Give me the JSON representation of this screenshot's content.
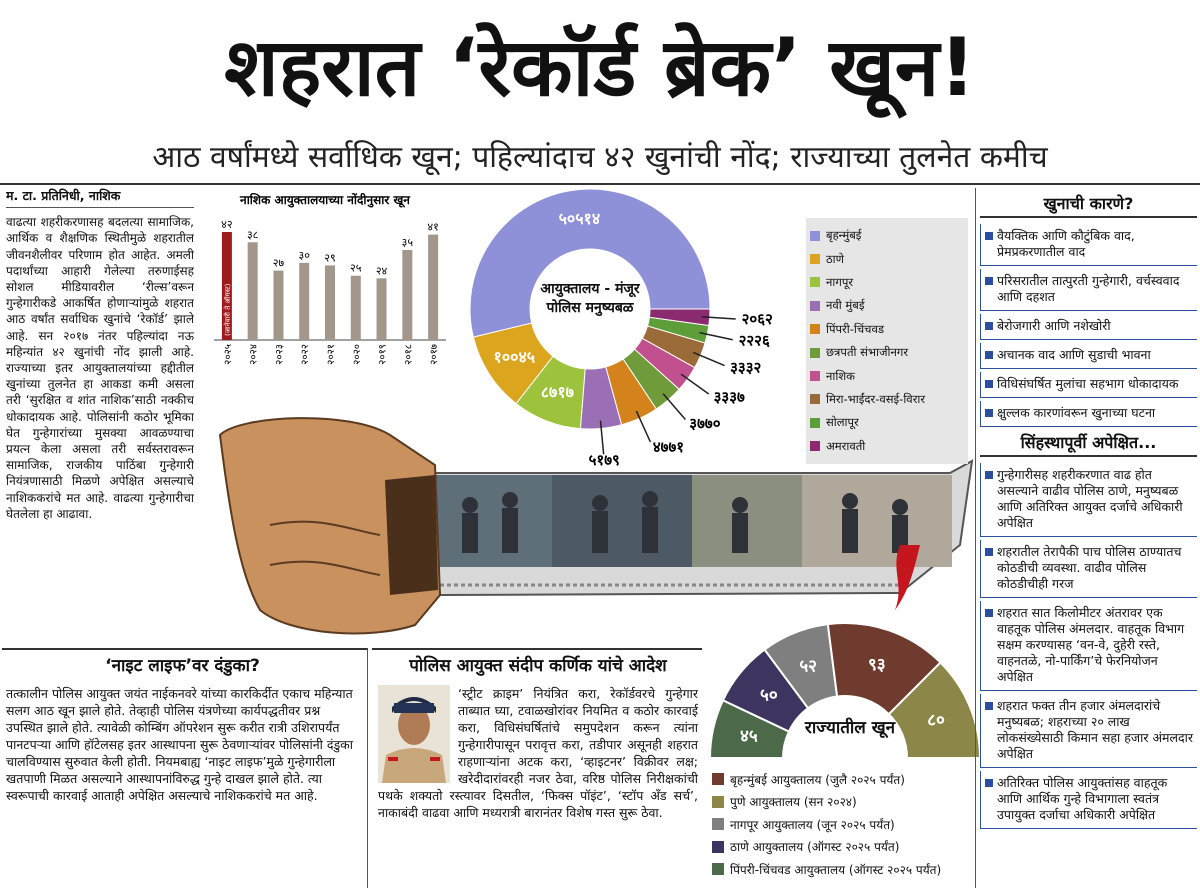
{
  "header": {
    "title": "शहरात ‘रेकॉर्ड ब्रेक’ खून!",
    "subtitle": "आठ वर्षांमध्ये सर्वाधिक खून; पहिल्यांदाच ४२ खुनांची नोंद; राज्याच्या तुलनेत कमीच"
  },
  "article": {
    "byline": "म. टा. प्रतिनिधी, नाशिक",
    "body": "वाढत्या शहरीकरणासह बदलत्या सामाजिक, आर्थिक व शैक्षणिक स्थितीमुळे शहरातील जीवनशैलीवर परिणाम होत आहेत. अमली पदार्थांच्या आहारी गेलेल्या तरुणाईसह सोशल मीडियावरील ‘रील्स’वरून गुन्हेगारीकडे आकर्षित होणाऱ्यांमुळे शहरात आठ वर्षांत सर्वाधिक खुनांचे ‘रेकॉर्ड’ झाले आहे. सन २०१७ नंतर पहिल्यांदा नऊ महिन्यांत ४२ खुनांची नोंद झाली आहे. राज्याच्या इतर आयुक्तालयांच्या हद्दीतील खुनांच्या तुलनेत हा आकडा कमी असला तरी ‘सुरक्षित व शांत नाशिक’साठी नक्कीच धोकादायक आहे. पोलिसांनी कठोर भूमिका घेत गुन्हेगारांच्या मुसक्या आवळण्याचा प्रयत्न केला असला तरी सर्वस्तरावरून सामाजिक, राजकीय पाठिंबा गुन्हेगारी नियंत्रणासाठी मिळणे अपेक्षित असल्याचे नाशिककरांचे मत आहे. वाढत्या गुन्हेगारीचा घेतलेला हा आढावा."
  },
  "chart_data": [
    {
      "type": "bar",
      "title": "नाशिक आयुक्तालयाच्या नोंदीनुसार खून",
      "categories": [
        "२०२५",
        "२०२४",
        "२०२३",
        "२०२२",
        "२०२१",
        "२०२०",
        "२०१९",
        "२०१८",
        "२०१७"
      ],
      "values": [
        42,
        38,
        27,
        30,
        29,
        25,
        24,
        35,
        41
      ],
      "value_labels": [
        "४२",
        "३८",
        "२७",
        "३०",
        "२९",
        "२५",
        "२४",
        "३५",
        "४१"
      ],
      "annotation": "(जानेवारी ते ऑगस्ट)",
      "colors": [
        "#9e1b1b",
        "#a3968a",
        "#a3968a",
        "#a3968a",
        "#a3968a",
        "#a3968a",
        "#a3968a",
        "#a3968a",
        "#a3968a"
      ]
    },
    {
      "type": "donut",
      "center_label": "आयुक्तालय - मंजूर पोलिस मनुष्यबळ",
      "categories": [
        "बृहन्मुंबई",
        "ठाणे",
        "नागपूर",
        "नवी मुंबई",
        "पिंपरी-चिंचवड",
        "छत्रपती संभाजीनगर",
        "नाशिक",
        "मिरा-भाईंदर-वसई-विरार",
        "सोलापूर",
        "अमरावती"
      ],
      "values": [
        50514,
        10045,
        8717,
        5179,
        4771,
        3770,
        3337,
        3332,
        2226,
        2062
      ],
      "value_labels": [
        "५०५१४",
        "१००४५",
        "८७१७",
        "५१७९",
        "४७७१",
        "३७७०",
        "३३३७",
        "३३३२",
        "२२२६",
        "२०६२"
      ],
      "colors": [
        "#8e90d8",
        "#dba61e",
        "#9dc23c",
        "#9b6fb6",
        "#d4821c",
        "#6f9b3a",
        "#c0508e",
        "#9a6a38",
        "#5e9e3a",
        "#8b2a6f"
      ]
    },
    {
      "type": "semidonut",
      "center_label": "राज्यातील खून",
      "categories": [
        "बृहन्मुंबई आयुक्तालय (जुलै २०२५ पर्यंत)",
        "पुणे आयुक्तालय (सन २०२४)",
        "नागपूर आयुक्तालय (जून २०२५ पर्यंत)",
        "ठाणे आयुक्तालय (ऑगस्ट २०२५ पर्यंत)",
        "पिंपरी-चिंचवड आयुक्तालय (ऑगस्ट २०२५ पर्यंत)"
      ],
      "values": [
        93,
        80,
        52,
        50,
        45
      ],
      "value_labels": [
        "९३",
        "८०",
        "५२",
        "५०",
        "४५"
      ],
      "colors": [
        "#6e3b2e",
        "#8c8748",
        "#7f7f7f",
        "#3d3560",
        "#4c6a4a"
      ]
    }
  ],
  "causes": {
    "title": "खुनाची कारणे?",
    "items": [
      "वैयक्तिक आणि कौटुंबिक वाद, प्रेमप्रकरणातील वाद",
      "परिसरातील तात्पुरती गुन्हेगारी, वर्चस्ववाद आणि दहशत",
      "बेरोजगारी आणि नशेखोरी",
      "अचानक वाद आणि सुडाची भावना",
      "विधिसंघर्षित मुलांचा सहभाग धोकादायक",
      "क्षुल्लक कारणांवरून खुनाच्या घटना"
    ]
  },
  "expectations": {
    "title": "सिंहस्थापूर्वी अपेक्षित...",
    "items": [
      "गुन्हेगारीसह शहरीकरणात वाढ होत असल्याने वाढीव पोलिस ठाणे, मनुष्यबळ आणि अतिरिक्त आयुक्त दर्जाचे अधिकारी अपेक्षित",
      "शहरातील तेरापैकी पाच पोलिस ठाण्यातच कोठडीची व्यवस्था. वाढीव पोलिस कोठडीचीही गरज",
      "शहरात सात किलोमीटर अंतरावर एक वाहतूक पोलिस अंमलदार. वाहतूक विभाग सक्षम करण्यासह ‘वन-वे, दुहेरी रस्ते, वाहनतळे, नो-पार्किंग’चे फेरनियोजन अपेक्षित",
      "शहरात फक्त तीन हजार अंमलदारांचे मनुष्यबळ; शहराच्या २० लाख लोकसंख्येसाठी किमान सहा हजार अंमलदार अपेक्षित",
      "अतिरिक्त पोलिस आयुक्तांसह वाहतूक आणि आर्थिक गुन्हे विभागाला स्वतंत्र उपायुक्त दर्जाचा अधिकारी अपेक्षित"
    ]
  },
  "night_life": {
    "title": "‘नाइट लाइफ’वर दंडुका?",
    "body": "तत्कालीन पोलिस आयुक्त जयंत नाईकनवरे यांच्या कारकिर्दीत एकाच महिन्यात सलग आठ खून झाले होते. तेव्हाही पोलिस यंत्रणेच्या कार्यपद्धतीवर प्रश्न उपस्थित झाले होते. त्यावेळी कोम्बिंग ऑपरेशन सुरू करीत रात्री उशिरापर्यंत पानटपऱ्या आणि हॉटेलसह इतर आस्थापना सुरू ठेवणाऱ्यांवर पोलिसांनी दंडुका चालविण्यास सुरुवात केली होती. नियमबाह्य ‘नाइट लाइफ’मुळे गुन्हेगारीला खतपाणी मिळत असल्याने आस्थापनांविरुद्ध गुन्हे दाखल झाले होते. त्या स्वरूपाची कारवाई आताही अपेक्षित असल्याचे नाशिककरांचे मत आहे."
  },
  "orders": {
    "title": "पोलिस आयुक्त संदीप कर्णिक यांचे आदेश",
    "body": "‘स्ट्रीट क्राइम’ नियंत्रित करा, रेकॉर्डवरचे गुन्हेगार ताब्यात घ्या, टवाळखोरांवर नियमित व कठोर कारवाई करा, विधिसंघर्षितांचे समुपदेशन करून त्यांना गुन्हेगारीपासून परावृत्त करा, तडीपार असूनही शहरात राहणाऱ्यांना अटक करा, ‘व्हाइटनर’ विक्रीवर लक्ष; खरेदीदारांवरही नजर ठेवा, वरिष्ठ पोलिस निरीक्षकांची पथके शक्यतो रस्त्यावर दिसतील, ‘फिक्स पॉइंट’, ‘स्टॉप अँड सर्च’, नाकाबंदी वाढवा आणि मध्यरात्री बारानंतर विशेष गस्त सुरू ठेवा."
  }
}
